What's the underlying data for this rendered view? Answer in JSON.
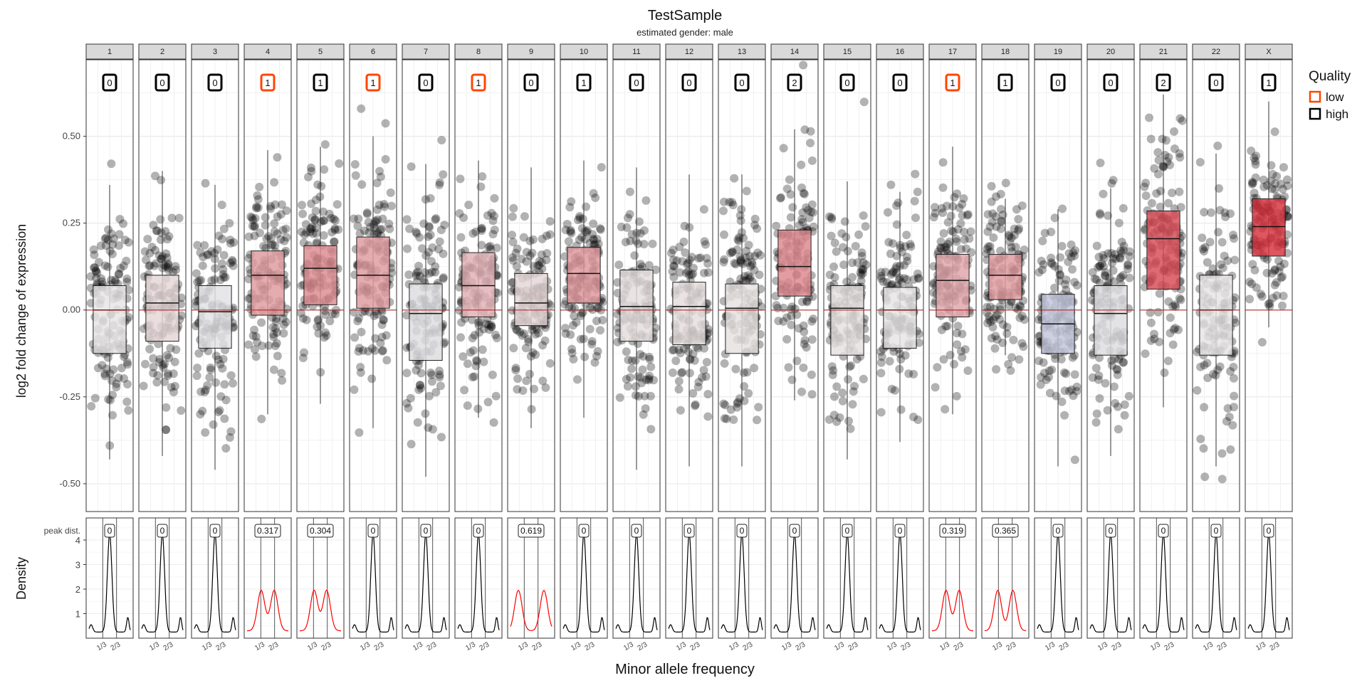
{
  "chart_data": {
    "type": "box",
    "title": "TestSample",
    "subtitle": "estimated gender: male",
    "chromosomes": [
      "1",
      "2",
      "3",
      "4",
      "5",
      "6",
      "7",
      "8",
      "9",
      "10",
      "11",
      "12",
      "13",
      "14",
      "15",
      "16",
      "17",
      "18",
      "19",
      "20",
      "21",
      "22",
      "X"
    ],
    "expression_panel": {
      "ylabel": "log2 fold change of expression",
      "ylim": [
        -0.58,
        0.72
      ],
      "yticks": [
        -0.5,
        -0.25,
        0.0,
        0.25,
        0.5
      ],
      "ytick_labels": [
        "-0.50",
        "-0.25",
        "0.00",
        "0.25",
        "0.50"
      ],
      "reference_line": 0.0,
      "scores": [
        0,
        0,
        0,
        1,
        1,
        1,
        0,
        1,
        0,
        1,
        0,
        0,
        0,
        2,
        0,
        0,
        1,
        1,
        0,
        0,
        2,
        0,
        1
      ],
      "quality": [
        "high",
        "high",
        "high",
        "low",
        "high",
        "low",
        "high",
        "low",
        "high",
        "high",
        "high",
        "high",
        "high",
        "high",
        "high",
        "high",
        "low",
        "high",
        "high",
        "high",
        "high",
        "high",
        "high"
      ],
      "boxes": [
        {
          "q1": -0.125,
          "median": 0.0,
          "q3": 0.07,
          "whisker_low": -0.43,
          "whisker_high": 0.36
        },
        {
          "q1": -0.09,
          "median": 0.02,
          "q3": 0.1,
          "whisker_low": -0.42,
          "whisker_high": 0.4
        },
        {
          "q1": -0.11,
          "median": -0.005,
          "q3": 0.07,
          "whisker_low": -0.46,
          "whisker_high": 0.36
        },
        {
          "q1": -0.015,
          "median": 0.1,
          "q3": 0.17,
          "whisker_low": -0.3,
          "whisker_high": 0.46
        },
        {
          "q1": 0.015,
          "median": 0.12,
          "q3": 0.185,
          "whisker_low": -0.27,
          "whisker_high": 0.47
        },
        {
          "q1": 0.005,
          "median": 0.1,
          "q3": 0.21,
          "whisker_low": -0.34,
          "whisker_high": 0.5
        },
        {
          "q1": -0.145,
          "median": -0.01,
          "q3": 0.075,
          "whisker_low": -0.48,
          "whisker_high": 0.42
        },
        {
          "q1": -0.02,
          "median": 0.07,
          "q3": 0.165,
          "whisker_low": -0.31,
          "whisker_high": 0.43
        },
        {
          "q1": -0.045,
          "median": 0.02,
          "q3": 0.105,
          "whisker_low": -0.34,
          "whisker_high": 0.41
        },
        {
          "q1": 0.02,
          "median": 0.105,
          "q3": 0.18,
          "whisker_low": -0.31,
          "whisker_high": 0.43
        },
        {
          "q1": -0.09,
          "median": 0.01,
          "q3": 0.115,
          "whisker_low": -0.46,
          "whisker_high": 0.41
        },
        {
          "q1": -0.1,
          "median": 0.01,
          "q3": 0.08,
          "whisker_low": -0.45,
          "whisker_high": 0.39
        },
        {
          "q1": -0.125,
          "median": 0.005,
          "q3": 0.075,
          "whisker_low": -0.45,
          "whisker_high": 0.39
        },
        {
          "q1": 0.04,
          "median": 0.125,
          "q3": 0.23,
          "whisker_low": -0.26,
          "whisker_high": 0.52
        },
        {
          "q1": -0.13,
          "median": 0.005,
          "q3": 0.07,
          "whisker_low": -0.43,
          "whisker_high": 0.37
        },
        {
          "q1": -0.11,
          "median": 0.0,
          "q3": 0.065,
          "whisker_low": -0.38,
          "whisker_high": 0.34
        },
        {
          "q1": -0.02,
          "median": 0.085,
          "q3": 0.16,
          "whisker_low": -0.3,
          "whisker_high": 0.47
        },
        {
          "q1": 0.03,
          "median": 0.1,
          "q3": 0.16,
          "whisker_low": -0.13,
          "whisker_high": 0.32
        },
        {
          "q1": -0.125,
          "median": -0.04,
          "q3": 0.045,
          "whisker_low": -0.45,
          "whisker_high": 0.29
        },
        {
          "q1": -0.13,
          "median": -0.01,
          "q3": 0.07,
          "whisker_low": -0.42,
          "whisker_high": 0.35
        },
        {
          "q1": 0.06,
          "median": 0.205,
          "q3": 0.285,
          "whisker_low": -0.28,
          "whisker_high": 0.62
        },
        {
          "q1": -0.13,
          "median": 0.0,
          "q3": 0.1,
          "whisker_low": -0.45,
          "whisker_high": 0.45
        },
        {
          "q1": 0.155,
          "median": 0.24,
          "q3": 0.32,
          "whisker_low": -0.05,
          "whisker_high": 0.6
        }
      ],
      "box_fill": {
        "low": "#b9bfd7",
        "neutral": "#e6e4e4",
        "high": "#d42a36"
      },
      "point_color": "#000000"
    },
    "density_panel": {
      "ylabel": "Density",
      "xlabel": "Minor allele frequency",
      "yticks": [
        1,
        2,
        3,
        4
      ],
      "ylim": [
        0,
        4.9
      ],
      "xticks": [
        0.3333,
        0.6667
      ],
      "xtick_labels": [
        "1/3",
        "2/3"
      ],
      "peak_label": "peak dist.",
      "peak_distances": [
        "0",
        "0",
        "0",
        "0.317",
        "0.304",
        "0",
        "0",
        "0",
        "0.619",
        "0",
        "0",
        "0",
        "0",
        "0",
        "0",
        "0",
        "0.319",
        "0.365",
        "0",
        "0",
        "0",
        "0",
        "0"
      ],
      "curve_color": {
        "unimodal": "#000000",
        "bimodal": "#ff0000"
      }
    },
    "legend": {
      "title": "Quality",
      "position": "right",
      "items": [
        {
          "label": "low",
          "color": "#ff4500"
        },
        {
          "label": "high",
          "color": "#000000"
        }
      ]
    },
    "grid": true
  }
}
